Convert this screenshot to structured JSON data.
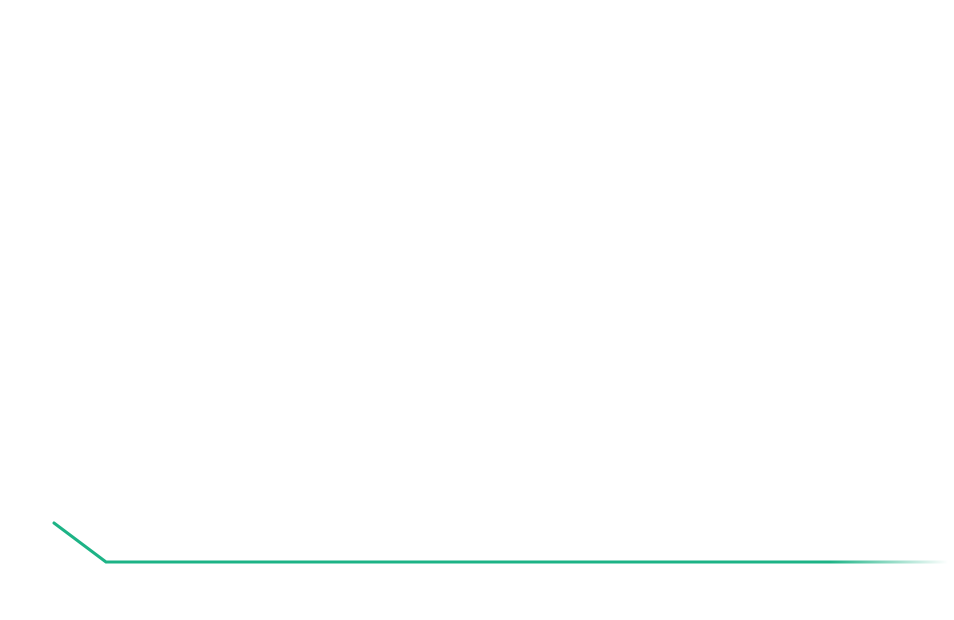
{
  "decoration": {
    "line_color": "#1db386",
    "background_color": "#ffffff",
    "shape": "corner-connector-line"
  }
}
